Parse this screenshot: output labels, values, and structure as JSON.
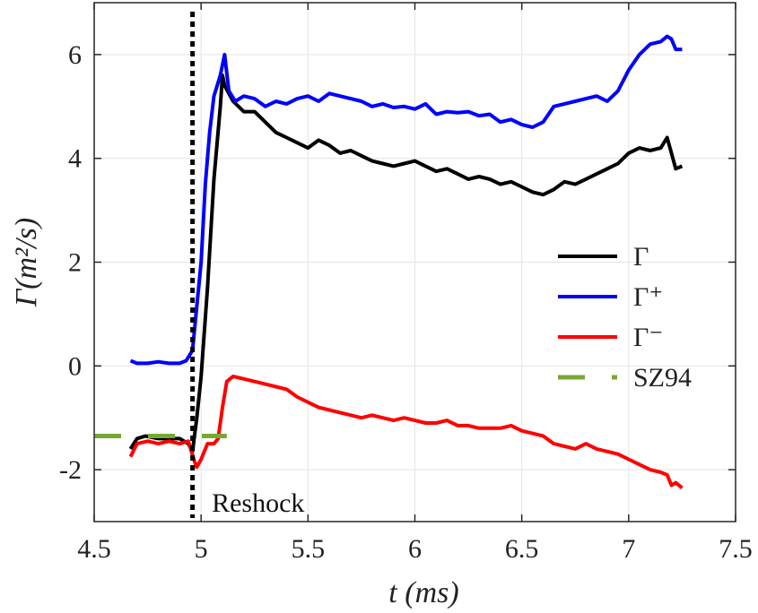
{
  "chart_data": {
    "type": "line",
    "title": "",
    "xlabel": "t (ms)",
    "ylabel": "Γ(m²/s)",
    "xlim": [
      4.5,
      7.5
    ],
    "ylim": [
      -3,
      7
    ],
    "xticks": [
      4.5,
      5,
      5.5,
      6,
      6.5,
      7,
      7.5
    ],
    "xtick_labels": [
      "4.5",
      "5",
      "5.5",
      "6",
      "6.5",
      "7",
      "7.5"
    ],
    "yticks": [
      -2,
      0,
      2,
      4,
      6
    ],
    "ytick_labels": [
      "-2",
      "0",
      "2",
      "4",
      "6"
    ],
    "grid": true,
    "legend_position": "right",
    "annotations": [
      {
        "text": "Reshock",
        "x": 5.05,
        "y": -2.6,
        "vline_x": 4.96,
        "style": "dotted",
        "color": "#000000"
      }
    ],
    "series": [
      {
        "name": "Γ",
        "color": "#000000",
        "style": "solid",
        "x": [
          4.67,
          4.7,
          4.74,
          4.8,
          4.85,
          4.9,
          4.94,
          4.96,
          4.98,
          5.0,
          5.03,
          5.06,
          5.09,
          5.1,
          5.11,
          5.15,
          5.2,
          5.25,
          5.3,
          5.35,
          5.4,
          5.45,
          5.5,
          5.55,
          5.6,
          5.65,
          5.7,
          5.75,
          5.8,
          5.85,
          5.9,
          5.95,
          6.0,
          6.05,
          6.1,
          6.15,
          6.2,
          6.25,
          6.3,
          6.35,
          6.4,
          6.45,
          6.5,
          6.55,
          6.6,
          6.65,
          6.7,
          6.75,
          6.8,
          6.85,
          6.9,
          6.95,
          7.0,
          7.05,
          7.1,
          7.15,
          7.18,
          7.2,
          7.22,
          7.25
        ],
        "y": [
          -1.6,
          -1.4,
          -1.35,
          -1.4,
          -1.4,
          -1.4,
          -1.5,
          -1.65,
          -1.0,
          -0.2,
          1.5,
          3.6,
          5.0,
          5.6,
          5.4,
          5.1,
          4.9,
          4.9,
          4.7,
          4.5,
          4.4,
          4.3,
          4.2,
          4.35,
          4.25,
          4.1,
          4.15,
          4.05,
          3.95,
          3.9,
          3.85,
          3.9,
          3.95,
          3.85,
          3.75,
          3.8,
          3.7,
          3.6,
          3.65,
          3.6,
          3.5,
          3.55,
          3.45,
          3.35,
          3.3,
          3.4,
          3.55,
          3.5,
          3.6,
          3.7,
          3.8,
          3.9,
          4.1,
          4.2,
          4.15,
          4.2,
          4.4,
          4.1,
          3.8,
          3.85
        ]
      },
      {
        "name": "Γ⁺",
        "color": "#0000ff",
        "style": "solid",
        "x": [
          4.67,
          4.7,
          4.75,
          4.8,
          4.85,
          4.9,
          4.93,
          4.96,
          5.0,
          5.02,
          5.04,
          5.06,
          5.09,
          5.11,
          5.13,
          5.16,
          5.2,
          5.25,
          5.3,
          5.35,
          5.4,
          5.45,
          5.5,
          5.55,
          5.6,
          5.65,
          5.7,
          5.75,
          5.8,
          5.85,
          5.9,
          5.95,
          6.0,
          6.05,
          6.1,
          6.15,
          6.2,
          6.25,
          6.3,
          6.35,
          6.4,
          6.45,
          6.5,
          6.55,
          6.6,
          6.65,
          6.7,
          6.75,
          6.8,
          6.85,
          6.9,
          6.95,
          7.0,
          7.05,
          7.1,
          7.15,
          7.18,
          7.2,
          7.22,
          7.25
        ],
        "y": [
          0.1,
          0.05,
          0.05,
          0.08,
          0.05,
          0.05,
          0.1,
          0.3,
          2.0,
          3.5,
          4.5,
          5.2,
          5.6,
          6.0,
          5.3,
          5.1,
          5.2,
          5.15,
          5.0,
          5.1,
          5.05,
          5.15,
          5.2,
          5.1,
          5.25,
          5.2,
          5.15,
          5.1,
          5.0,
          5.05,
          4.98,
          5.0,
          4.95,
          5.05,
          4.85,
          4.9,
          4.88,
          4.9,
          4.82,
          4.85,
          4.7,
          4.75,
          4.65,
          4.6,
          4.7,
          5.0,
          5.05,
          5.1,
          5.15,
          5.2,
          5.1,
          5.3,
          5.7,
          6.0,
          6.2,
          6.25,
          6.35,
          6.3,
          6.1,
          6.1
        ]
      },
      {
        "name": "Γ⁻",
        "color": "#ff0000",
        "style": "solid",
        "x": [
          4.67,
          4.7,
          4.75,
          4.8,
          4.85,
          4.9,
          4.94,
          4.97,
          4.98,
          5.0,
          5.03,
          5.06,
          5.08,
          5.1,
          5.12,
          5.15,
          5.2,
          5.25,
          5.3,
          5.35,
          5.4,
          5.45,
          5.5,
          5.55,
          5.6,
          5.65,
          5.7,
          5.75,
          5.8,
          5.85,
          5.9,
          5.95,
          6.0,
          6.05,
          6.1,
          6.15,
          6.2,
          6.25,
          6.3,
          6.35,
          6.4,
          6.45,
          6.5,
          6.55,
          6.6,
          6.65,
          6.7,
          6.75,
          6.8,
          6.85,
          6.9,
          6.95,
          7.0,
          7.05,
          7.1,
          7.15,
          7.18,
          7.2,
          7.22,
          7.25
        ],
        "y": [
          -1.75,
          -1.5,
          -1.45,
          -1.5,
          -1.45,
          -1.5,
          -1.45,
          -1.85,
          -1.95,
          -1.8,
          -1.5,
          -1.5,
          -1.4,
          -0.8,
          -0.3,
          -0.2,
          -0.25,
          -0.3,
          -0.35,
          -0.4,
          -0.45,
          -0.6,
          -0.7,
          -0.8,
          -0.85,
          -0.9,
          -0.95,
          -1.0,
          -0.95,
          -1.0,
          -1.05,
          -1.0,
          -1.05,
          -1.1,
          -1.1,
          -1.05,
          -1.15,
          -1.15,
          -1.2,
          -1.2,
          -1.2,
          -1.15,
          -1.25,
          -1.3,
          -1.35,
          -1.5,
          -1.55,
          -1.6,
          -1.5,
          -1.6,
          -1.65,
          -1.7,
          -1.8,
          -1.9,
          -2.0,
          -2.05,
          -2.1,
          -2.3,
          -2.25,
          -2.35
        ]
      },
      {
        "name": "SZ94",
        "color": "#77a832",
        "style": "dashed",
        "x": [
          4.5,
          5.12
        ],
        "y": [
          -1.35,
          -1.35
        ]
      }
    ]
  }
}
